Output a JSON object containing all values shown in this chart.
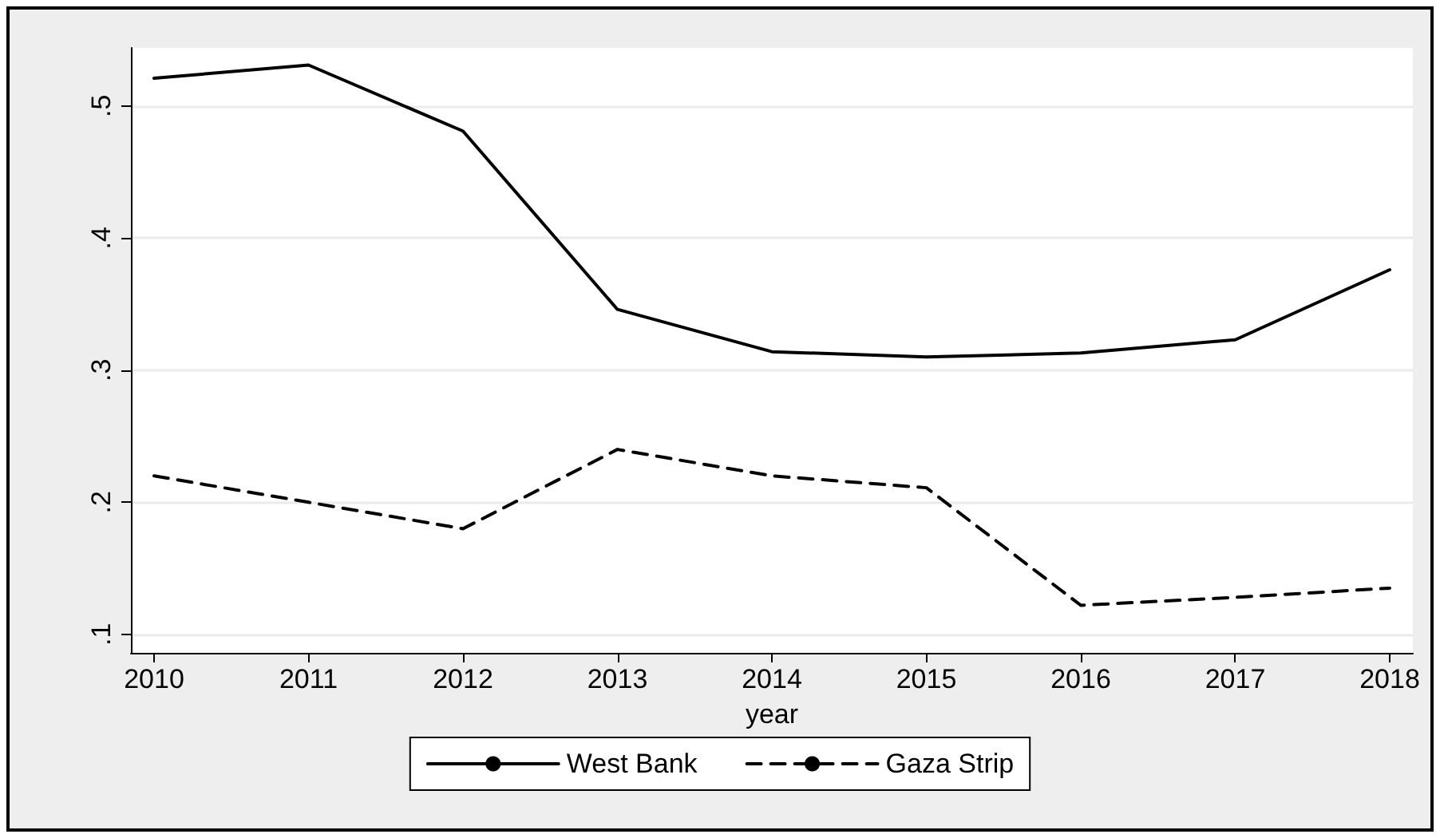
{
  "chart_data": {
    "type": "line",
    "xlabel": "year",
    "x": [
      2010,
      2011,
      2012,
      2013,
      2014,
      2015,
      2016,
      2017,
      2018
    ],
    "series": [
      {
        "name": "West Bank",
        "color": "#000000",
        "line_style": "solid",
        "values": [
          0.521,
          0.531,
          0.481,
          0.346,
          0.314,
          0.31,
          0.313,
          0.323,
          0.376
        ]
      },
      {
        "name": "Gaza Strip",
        "color": "#000000",
        "line_style": "dashed",
        "values": [
          0.22,
          0.2,
          0.18,
          0.24,
          0.22,
          0.211,
          0.122,
          0.128,
          0.135
        ]
      }
    ],
    "xlim": [
      2009.85,
      2018.15
    ],
    "xticks": [
      2010,
      2011,
      2012,
      2013,
      2014,
      2015,
      2016,
      2017,
      2018
    ],
    "ylim": [
      0.086,
      0.544
    ],
    "yticks": [
      {
        "value": 0.1,
        "label": ".1"
      },
      {
        "value": 0.2,
        "label": ".2"
      },
      {
        "value": 0.3,
        "label": ".3"
      },
      {
        "value": 0.4,
        "label": ".4"
      },
      {
        "value": 0.5,
        "label": ".5"
      }
    ],
    "grid": "y",
    "legend": "bottom",
    "marker": "none"
  }
}
